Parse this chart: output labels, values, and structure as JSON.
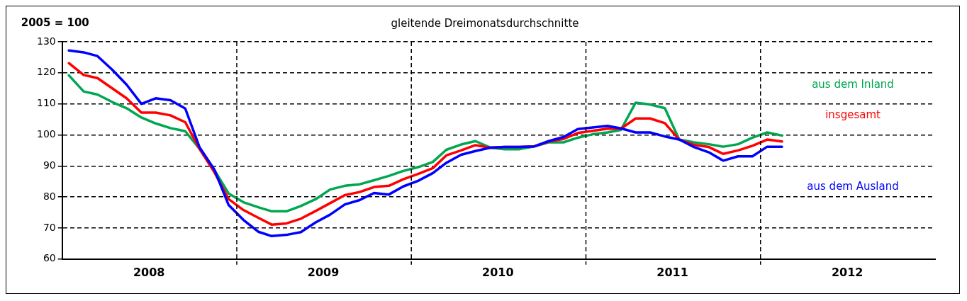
{
  "chart_data": {
    "type": "line",
    "title": "gleitende Dreimonatsdurchschnitte",
    "ylabel": "2005 = 100",
    "x": [
      "2008-01-15",
      "2008-02-15",
      "2008-03-15",
      "2008-04-15",
      "2008-05-15",
      "2008-06-15",
      "2008-07-15",
      "2008-08-15",
      "2008-09-15",
      "2008-10-15",
      "2008-11-15",
      "2008-12-15",
      "2009-01-15",
      "2009-02-15",
      "2009-03-15",
      "2009-04-15",
      "2009-05-15",
      "2009-06-15",
      "2009-07-15",
      "2009-08-15",
      "2009-09-15",
      "2009-10-15",
      "2009-11-15",
      "2009-12-15",
      "2010-01-15",
      "2010-02-15",
      "2010-03-15",
      "2010-04-15",
      "2010-05-15",
      "2010-06-15",
      "2010-07-15",
      "2010-08-15",
      "2010-09-15",
      "2010-10-15",
      "2010-11-15",
      "2010-12-15",
      "2011-01-15",
      "2011-02-15",
      "2011-03-15",
      "2011-04-15",
      "2011-05-15",
      "2011-06-15",
      "2011-07-15",
      "2011-08-15",
      "2011-09-15",
      "2011-10-15",
      "2011-11-15",
      "2011-12-15",
      "2012-01-15",
      "2012-02-15"
    ],
    "series": [
      {
        "name": "aus dem Inland",
        "color": "#00a651",
        "values": [
          119.2,
          114,
          113,
          110.6,
          108.6,
          105.6,
          103.7,
          102.2,
          101.2,
          95.5,
          88.7,
          81.1,
          78.3,
          76.7,
          75.4,
          75.4,
          77.1,
          79.3,
          82.4,
          83.6,
          84.1,
          85.4,
          86.8,
          88.4,
          89.6,
          91.3,
          95.2,
          96.9,
          98,
          95.9,
          95.4,
          95.4,
          96.3,
          97.6,
          97.6,
          99.1,
          100.2,
          100.8,
          101.6,
          110.4,
          109.8,
          108.6,
          98.5,
          97.6,
          97,
          96.2,
          97,
          99.1,
          100.8,
          99.8
        ]
      },
      {
        "name": "insgesamt",
        "color": "#ff0000",
        "values": [
          123.1,
          119.3,
          118.3,
          115,
          111.8,
          107.2,
          107.2,
          106.3,
          104.1,
          95.5,
          88,
          79.3,
          75.8,
          73.3,
          71.1,
          71.5,
          73,
          75.5,
          78,
          80.6,
          81.6,
          83.2,
          83.6,
          85.7,
          87.4,
          89.3,
          93.4,
          95,
          96.7,
          95.9,
          96.1,
          96.1,
          96.3,
          97.8,
          98.7,
          100.6,
          101.3,
          102,
          102,
          105.3,
          105.3,
          103.8,
          98.5,
          96.8,
          96.1,
          93.9,
          95,
          96.5,
          98.5,
          97.9
        ]
      },
      {
        "name": "aus dem Ausland",
        "color": "#0000ff",
        "values": [
          127.2,
          126.6,
          125.4,
          121,
          116.2,
          110,
          111.8,
          111.2,
          108.5,
          96,
          88.8,
          77.4,
          72.6,
          68.8,
          67.4,
          67.8,
          68.7,
          71.8,
          74.3,
          77.6,
          79,
          81.3,
          80.8,
          83.4,
          85.2,
          87.7,
          91,
          93.6,
          94.8,
          95.9,
          96.1,
          96.1,
          96.3,
          98,
          99.3,
          101.9,
          102.4,
          102.9,
          102.1,
          100.8,
          100.8,
          99.5,
          98.5,
          96.1,
          94.4,
          91.7,
          93.1,
          93.1,
          96.2,
          96.2
        ]
      }
    ],
    "xlim": [
      "2008-01-01",
      "2013-01-01"
    ],
    "xticks": [
      {
        "value": "2008-07-01",
        "label": "2008"
      },
      {
        "value": "2009-07-01",
        "label": "2009"
      },
      {
        "value": "2010-07-01",
        "label": "2010"
      },
      {
        "value": "2011-07-01",
        "label": "2011"
      },
      {
        "value": "2012-07-01",
        "label": "2012"
      }
    ],
    "ylim": [
      60,
      130
    ],
    "yticks": [
      60,
      70,
      80,
      90,
      100,
      110,
      120,
      130
    ],
    "grid": "y",
    "line_style": "solid",
    "marker": "none",
    "ref_lines": [
      {
        "axis": "x",
        "value": "2009-01-01",
        "color": "#000000",
        "line_style": "dashed"
      },
      {
        "axis": "x",
        "value": "2010-01-01",
        "color": "#000000",
        "line_style": "dashed"
      },
      {
        "axis": "x",
        "value": "2011-01-01",
        "color": "#000000",
        "line_style": "dashed"
      },
      {
        "axis": "x",
        "value": "2012-01-01",
        "color": "#000000",
        "line_style": "dashed"
      }
    ]
  }
}
